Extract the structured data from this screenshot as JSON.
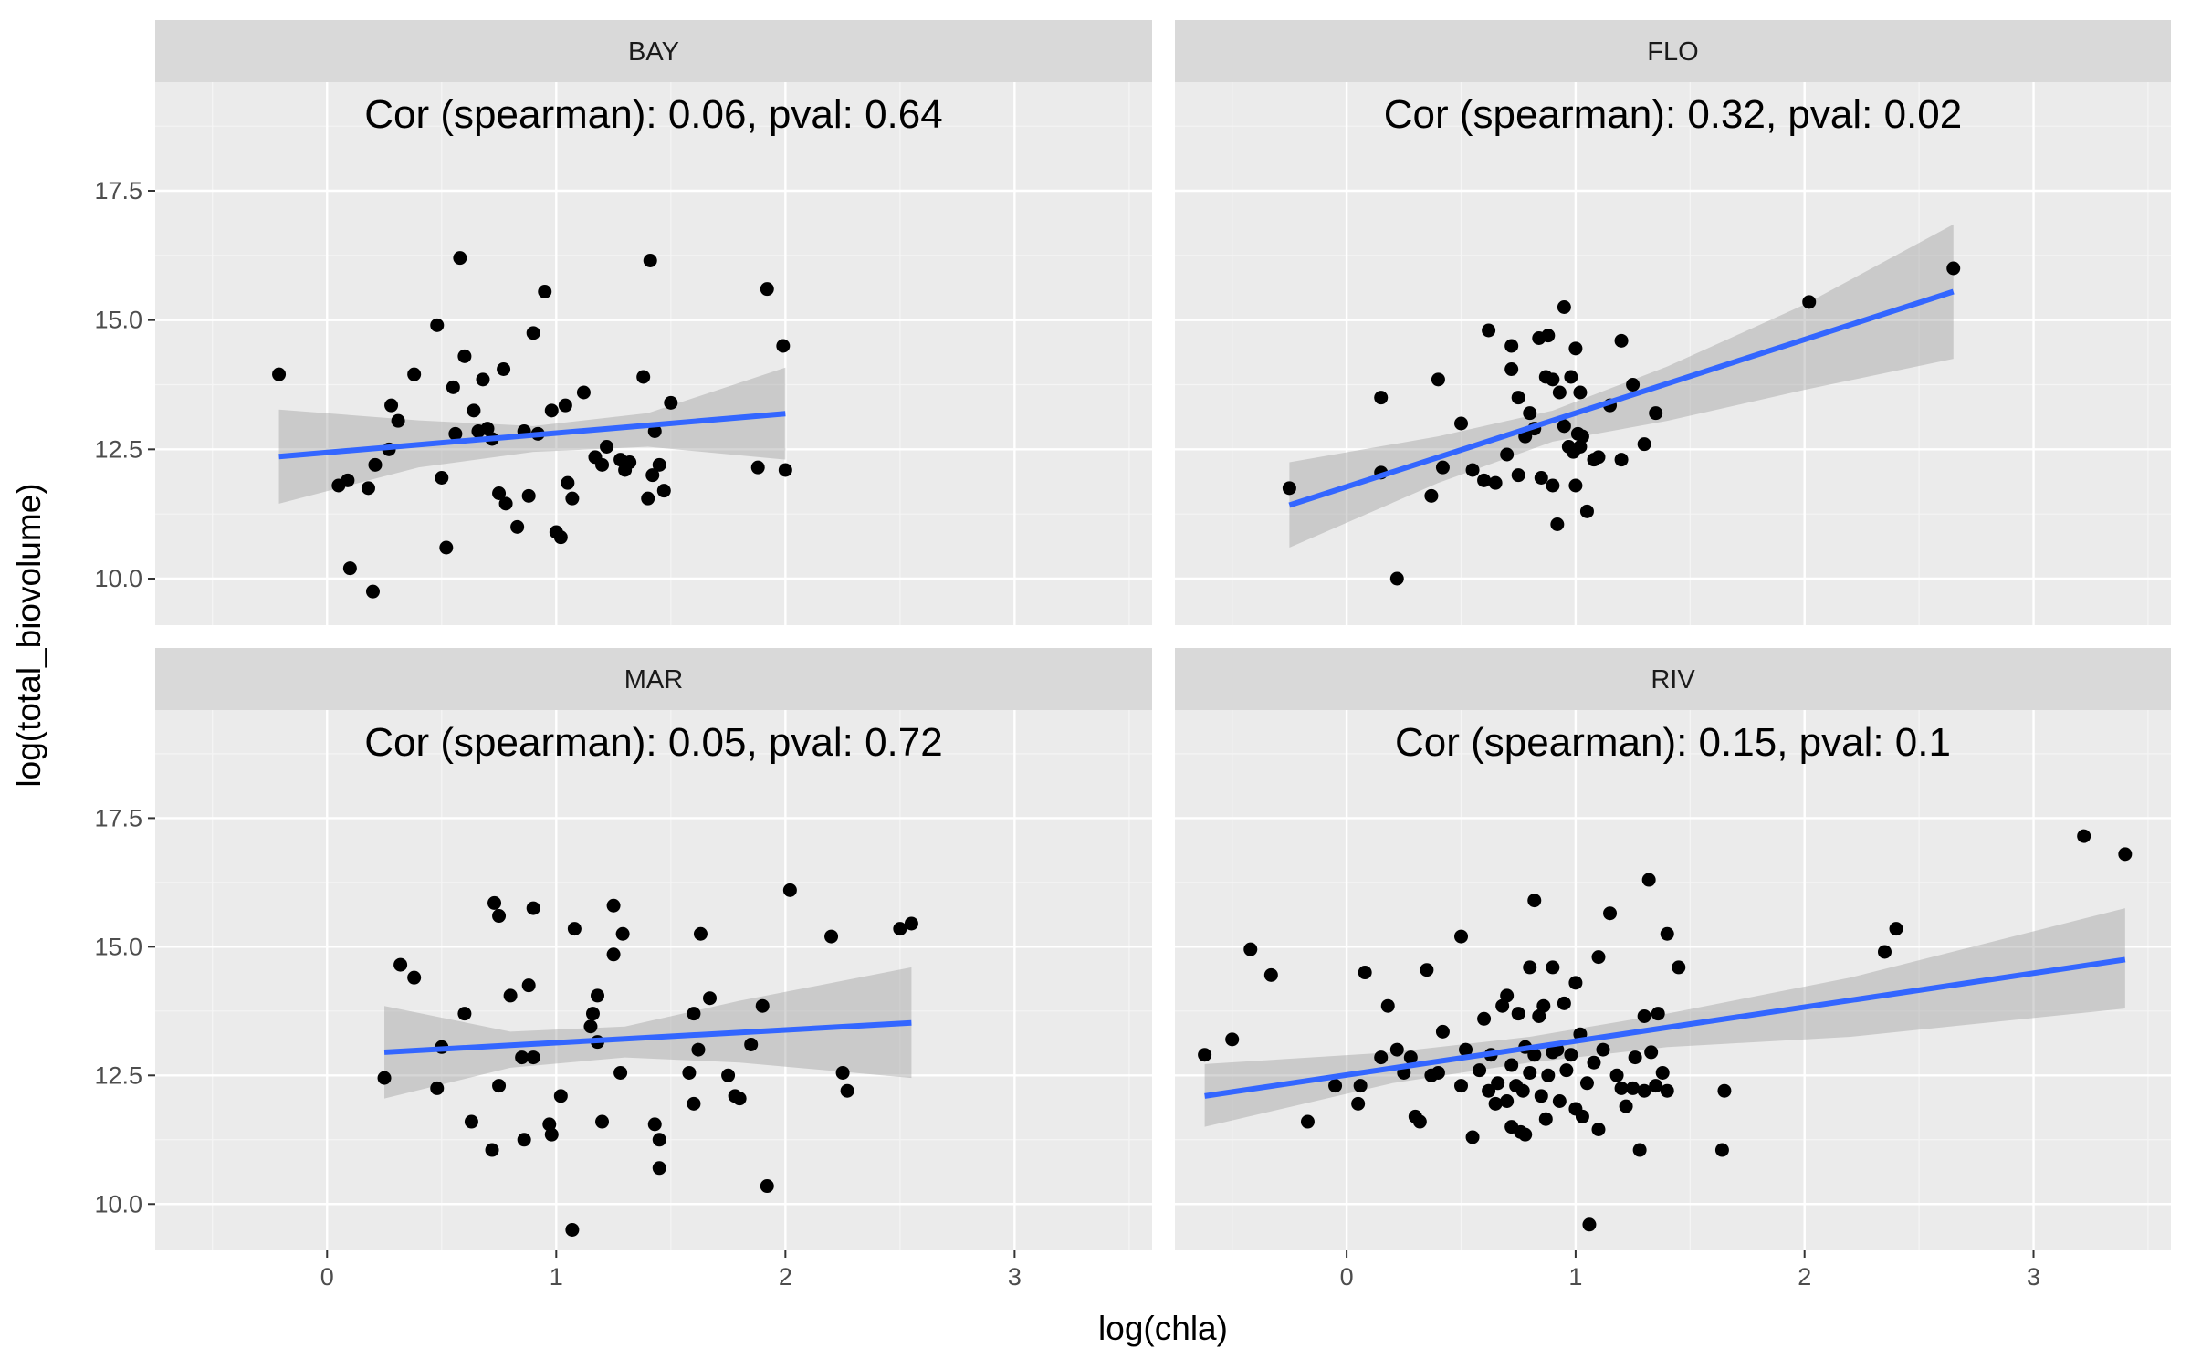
{
  "chart_data": {
    "type": "scatter",
    "xlabel": "log(chla)",
    "ylabel": "log(total_biovolume)",
    "xlim": [
      -0.75,
      3.6
    ],
    "ylim": [
      9.1,
      19.6
    ],
    "x_ticks": [
      0,
      1,
      2,
      3
    ],
    "x_tick_labels": [
      "0",
      "1",
      "2",
      "3"
    ],
    "y_ticks": [
      10.0,
      12.5,
      15.0,
      17.5
    ],
    "y_tick_labels": [
      "10.0",
      "12.5",
      "15.0",
      "17.5"
    ],
    "grid": true,
    "colors": {
      "point": "#000000",
      "fit_line": "#3366FF",
      "ribbon": "#999999",
      "panel": "#EBEBEB",
      "strip": "#D9D9D9"
    },
    "panels": [
      {
        "facet": "BAY",
        "annotation": "Cor (spearman): 0.06, pval: 0.64",
        "fit": {
          "x": [
            -0.21,
            2.0
          ],
          "y": [
            12.36,
            13.19
          ]
        },
        "ribbon": {
          "x": [
            -0.21,
            0.4,
            0.9,
            1.4,
            2.0
          ],
          "lower": [
            11.45,
            12.15,
            12.45,
            12.55,
            12.3
          ],
          "upper": [
            13.27,
            13.06,
            12.95,
            13.2,
            14.08
          ]
        },
        "points": [
          [
            -0.21,
            13.95
          ],
          [
            0.05,
            11.8
          ],
          [
            0.09,
            11.9
          ],
          [
            0.1,
            10.2
          ],
          [
            0.18,
            11.75
          ],
          [
            0.2,
            9.75
          ],
          [
            0.21,
            12.2
          ],
          [
            0.27,
            12.5
          ],
          [
            0.28,
            13.35
          ],
          [
            0.31,
            13.05
          ],
          [
            0.38,
            13.95
          ],
          [
            0.48,
            14.9
          ],
          [
            0.5,
            11.95
          ],
          [
            0.52,
            10.6
          ],
          [
            0.55,
            13.7
          ],
          [
            0.56,
            12.8
          ],
          [
            0.58,
            16.2
          ],
          [
            0.6,
            14.3
          ],
          [
            0.64,
            13.25
          ],
          [
            0.66,
            12.85
          ],
          [
            0.68,
            13.85
          ],
          [
            0.7,
            12.9
          ],
          [
            0.72,
            12.7
          ],
          [
            0.75,
            11.65
          ],
          [
            0.77,
            14.05
          ],
          [
            0.78,
            11.45
          ],
          [
            0.83,
            11.0
          ],
          [
            0.86,
            12.85
          ],
          [
            0.88,
            11.6
          ],
          [
            0.9,
            14.75
          ],
          [
            0.92,
            12.8
          ],
          [
            0.95,
            15.55
          ],
          [
            0.98,
            13.25
          ],
          [
            1.0,
            10.9
          ],
          [
            1.02,
            10.8
          ],
          [
            1.04,
            13.35
          ],
          [
            1.05,
            11.85
          ],
          [
            1.07,
            11.55
          ],
          [
            1.12,
            13.6
          ],
          [
            1.17,
            12.35
          ],
          [
            1.2,
            12.2
          ],
          [
            1.22,
            12.55
          ],
          [
            1.28,
            12.3
          ],
          [
            1.3,
            12.1
          ],
          [
            1.32,
            12.25
          ],
          [
            1.38,
            13.9
          ],
          [
            1.4,
            11.55
          ],
          [
            1.41,
            16.15
          ],
          [
            1.42,
            12.0
          ],
          [
            1.43,
            12.85
          ],
          [
            1.45,
            12.2
          ],
          [
            1.47,
            11.7
          ],
          [
            1.5,
            13.4
          ],
          [
            1.88,
            12.15
          ],
          [
            1.92,
            15.6
          ],
          [
            1.99,
            14.5
          ],
          [
            2.0,
            12.1
          ]
        ]
      },
      {
        "facet": "FLO",
        "annotation": "Cor (spearman): 0.32, pval: 0.02",
        "fit": {
          "x": [
            -0.25,
            2.65
          ],
          "y": [
            11.42,
            15.55
          ]
        },
        "ribbon": {
          "x": [
            -0.25,
            0.4,
            0.9,
            1.4,
            2.0,
            2.65
          ],
          "lower": [
            10.6,
            11.85,
            12.65,
            13.05,
            13.65,
            14.25
          ],
          "upper": [
            12.25,
            12.75,
            13.25,
            14.1,
            15.3,
            16.85
          ]
        },
        "points": [
          [
            -0.25,
            11.75
          ],
          [
            0.15,
            13.5
          ],
          [
            0.15,
            12.05
          ],
          [
            0.22,
            10.0
          ],
          [
            0.37,
            11.6
          ],
          [
            0.4,
            13.85
          ],
          [
            0.42,
            12.15
          ],
          [
            0.5,
            13.0
          ],
          [
            0.55,
            12.1
          ],
          [
            0.6,
            11.9
          ],
          [
            0.62,
            14.8
          ],
          [
            0.65,
            11.85
          ],
          [
            0.7,
            12.4
          ],
          [
            0.72,
            14.5
          ],
          [
            0.72,
            14.05
          ],
          [
            0.75,
            12.0
          ],
          [
            0.75,
            13.5
          ],
          [
            0.78,
            12.75
          ],
          [
            0.8,
            13.2
          ],
          [
            0.82,
            12.9
          ],
          [
            0.84,
            14.65
          ],
          [
            0.85,
            11.95
          ],
          [
            0.87,
            13.9
          ],
          [
            0.88,
            14.7
          ],
          [
            0.9,
            11.8
          ],
          [
            0.9,
            13.85
          ],
          [
            0.92,
            11.05
          ],
          [
            0.93,
            13.6
          ],
          [
            0.95,
            15.25
          ],
          [
            0.95,
            12.95
          ],
          [
            0.97,
            12.55
          ],
          [
            0.98,
            13.9
          ],
          [
            0.99,
            12.45
          ],
          [
            1.0,
            11.8
          ],
          [
            1.0,
            14.45
          ],
          [
            1.01,
            12.8
          ],
          [
            1.02,
            12.55
          ],
          [
            1.02,
            13.6
          ],
          [
            1.03,
            12.75
          ],
          [
            1.05,
            11.3
          ],
          [
            1.08,
            12.3
          ],
          [
            1.1,
            12.35
          ],
          [
            1.15,
            13.35
          ],
          [
            1.2,
            14.6
          ],
          [
            1.2,
            12.3
          ],
          [
            1.25,
            13.75
          ],
          [
            1.3,
            12.6
          ],
          [
            1.35,
            13.2
          ],
          [
            2.02,
            15.35
          ],
          [
            2.65,
            16.0
          ]
        ]
      },
      {
        "facet": "MAR",
        "annotation": "Cor (spearman): 0.05, pval: 0.72",
        "fit": {
          "x": [
            0.25,
            2.55
          ],
          "y": [
            12.95,
            13.52
          ]
        },
        "ribbon": {
          "x": [
            0.25,
            0.8,
            1.3,
            1.8,
            2.55
          ],
          "lower": [
            12.05,
            12.65,
            12.85,
            12.75,
            12.45
          ],
          "upper": [
            13.85,
            13.35,
            13.45,
            13.95,
            14.6
          ]
        },
        "points": [
          [
            0.25,
            12.45
          ],
          [
            0.32,
            14.65
          ],
          [
            0.38,
            14.4
          ],
          [
            0.48,
            12.25
          ],
          [
            0.5,
            13.05
          ],
          [
            0.6,
            13.7
          ],
          [
            0.63,
            11.6
          ],
          [
            0.72,
            11.05
          ],
          [
            0.73,
            15.85
          ],
          [
            0.75,
            15.6
          ],
          [
            0.75,
            12.3
          ],
          [
            0.8,
            14.05
          ],
          [
            0.85,
            12.85
          ],
          [
            0.86,
            11.25
          ],
          [
            0.88,
            14.25
          ],
          [
            0.9,
            12.85
          ],
          [
            0.9,
            15.75
          ],
          [
            0.97,
            11.55
          ],
          [
            0.98,
            11.35
          ],
          [
            1.02,
            12.1
          ],
          [
            1.08,
            15.35
          ],
          [
            1.07,
            9.5
          ],
          [
            1.15,
            13.45
          ],
          [
            1.16,
            13.7
          ],
          [
            1.18,
            14.05
          ],
          [
            1.18,
            13.15
          ],
          [
            1.2,
            11.6
          ],
          [
            1.25,
            15.8
          ],
          [
            1.25,
            14.85
          ],
          [
            1.28,
            12.55
          ],
          [
            1.29,
            15.25
          ],
          [
            1.43,
            11.55
          ],
          [
            1.45,
            11.25
          ],
          [
            1.45,
            10.7
          ],
          [
            1.58,
            12.55
          ],
          [
            1.6,
            11.95
          ],
          [
            1.6,
            13.7
          ],
          [
            1.62,
            13.0
          ],
          [
            1.63,
            15.25
          ],
          [
            1.67,
            14.0
          ],
          [
            1.75,
            12.5
          ],
          [
            1.78,
            12.1
          ],
          [
            1.8,
            12.05
          ],
          [
            1.85,
            13.1
          ],
          [
            1.9,
            13.85
          ],
          [
            1.92,
            10.35
          ],
          [
            2.02,
            16.1
          ],
          [
            2.2,
            15.2
          ],
          [
            2.25,
            12.55
          ],
          [
            2.27,
            12.2
          ],
          [
            2.5,
            15.35
          ],
          [
            2.55,
            15.45
          ]
        ]
      },
      {
        "facet": "RIV",
        "annotation": "Cor (spearman): 0.15, pval: 0.1",
        "fit": {
          "x": [
            -0.62,
            3.4
          ],
          "y": [
            12.1,
            14.75
          ]
        },
        "ribbon": {
          "x": [
            -0.62,
            0.2,
            0.8,
            1.4,
            2.2,
            3.4
          ],
          "lower": [
            11.5,
            12.35,
            12.75,
            13.05,
            13.25,
            13.8
          ],
          "upper": [
            12.72,
            12.95,
            13.25,
            13.7,
            14.4,
            15.75
          ]
        },
        "points": [
          [
            -0.62,
            12.9
          ],
          [
            -0.5,
            13.2
          ],
          [
            -0.42,
            14.95
          ],
          [
            -0.33,
            14.45
          ],
          [
            -0.17,
            11.6
          ],
          [
            -0.05,
            12.3
          ],
          [
            0.05,
            11.95
          ],
          [
            0.06,
            12.3
          ],
          [
            0.08,
            14.5
          ],
          [
            0.15,
            12.85
          ],
          [
            0.18,
            13.85
          ],
          [
            0.22,
            13.0
          ],
          [
            0.25,
            12.55
          ],
          [
            0.28,
            12.85
          ],
          [
            0.3,
            11.7
          ],
          [
            0.32,
            11.6
          ],
          [
            0.35,
            14.55
          ],
          [
            0.37,
            12.5
          ],
          [
            0.4,
            12.55
          ],
          [
            0.42,
            13.35
          ],
          [
            0.5,
            15.2
          ],
          [
            0.5,
            12.3
          ],
          [
            0.52,
            13.0
          ],
          [
            0.55,
            11.3
          ],
          [
            0.58,
            12.6
          ],
          [
            0.6,
            13.6
          ],
          [
            0.62,
            12.2
          ],
          [
            0.63,
            12.9
          ],
          [
            0.65,
            11.95
          ],
          [
            0.66,
            12.35
          ],
          [
            0.68,
            13.85
          ],
          [
            0.7,
            12.0
          ],
          [
            0.7,
            14.05
          ],
          [
            0.72,
            11.5
          ],
          [
            0.72,
            12.7
          ],
          [
            0.74,
            12.3
          ],
          [
            0.75,
            13.7
          ],
          [
            0.76,
            11.4
          ],
          [
            0.77,
            12.2
          ],
          [
            0.78,
            11.35
          ],
          [
            0.78,
            13.05
          ],
          [
            0.8,
            14.6
          ],
          [
            0.8,
            12.55
          ],
          [
            0.82,
            12.9
          ],
          [
            0.82,
            15.9
          ],
          [
            0.84,
            13.65
          ],
          [
            0.85,
            12.1
          ],
          [
            0.86,
            13.85
          ],
          [
            0.87,
            11.65
          ],
          [
            0.88,
            12.5
          ],
          [
            0.9,
            12.95
          ],
          [
            0.9,
            14.6
          ],
          [
            0.92,
            13.0
          ],
          [
            0.93,
            12.0
          ],
          [
            0.95,
            13.9
          ],
          [
            0.96,
            12.6
          ],
          [
            0.98,
            12.9
          ],
          [
            1.0,
            11.85
          ],
          [
            1.0,
            14.3
          ],
          [
            1.02,
            13.3
          ],
          [
            1.03,
            11.7
          ],
          [
            1.05,
            12.35
          ],
          [
            1.06,
            9.6
          ],
          [
            1.08,
            12.75
          ],
          [
            1.1,
            11.45
          ],
          [
            1.1,
            14.8
          ],
          [
            1.12,
            13.0
          ],
          [
            1.15,
            15.65
          ],
          [
            1.18,
            12.5
          ],
          [
            1.2,
            12.25
          ],
          [
            1.22,
            11.9
          ],
          [
            1.25,
            12.25
          ],
          [
            1.26,
            12.85
          ],
          [
            1.28,
            11.05
          ],
          [
            1.3,
            12.2
          ],
          [
            1.3,
            13.65
          ],
          [
            1.32,
            16.3
          ],
          [
            1.33,
            12.95
          ],
          [
            1.35,
            12.3
          ],
          [
            1.36,
            13.7
          ],
          [
            1.38,
            12.55
          ],
          [
            1.4,
            15.25
          ],
          [
            1.4,
            12.2
          ],
          [
            1.45,
            14.6
          ],
          [
            1.65,
            12.2
          ],
          [
            1.64,
            11.05
          ],
          [
            2.35,
            14.9
          ],
          [
            2.4,
            15.35
          ],
          [
            3.22,
            17.15
          ],
          [
            3.4,
            16.8
          ]
        ]
      }
    ]
  }
}
